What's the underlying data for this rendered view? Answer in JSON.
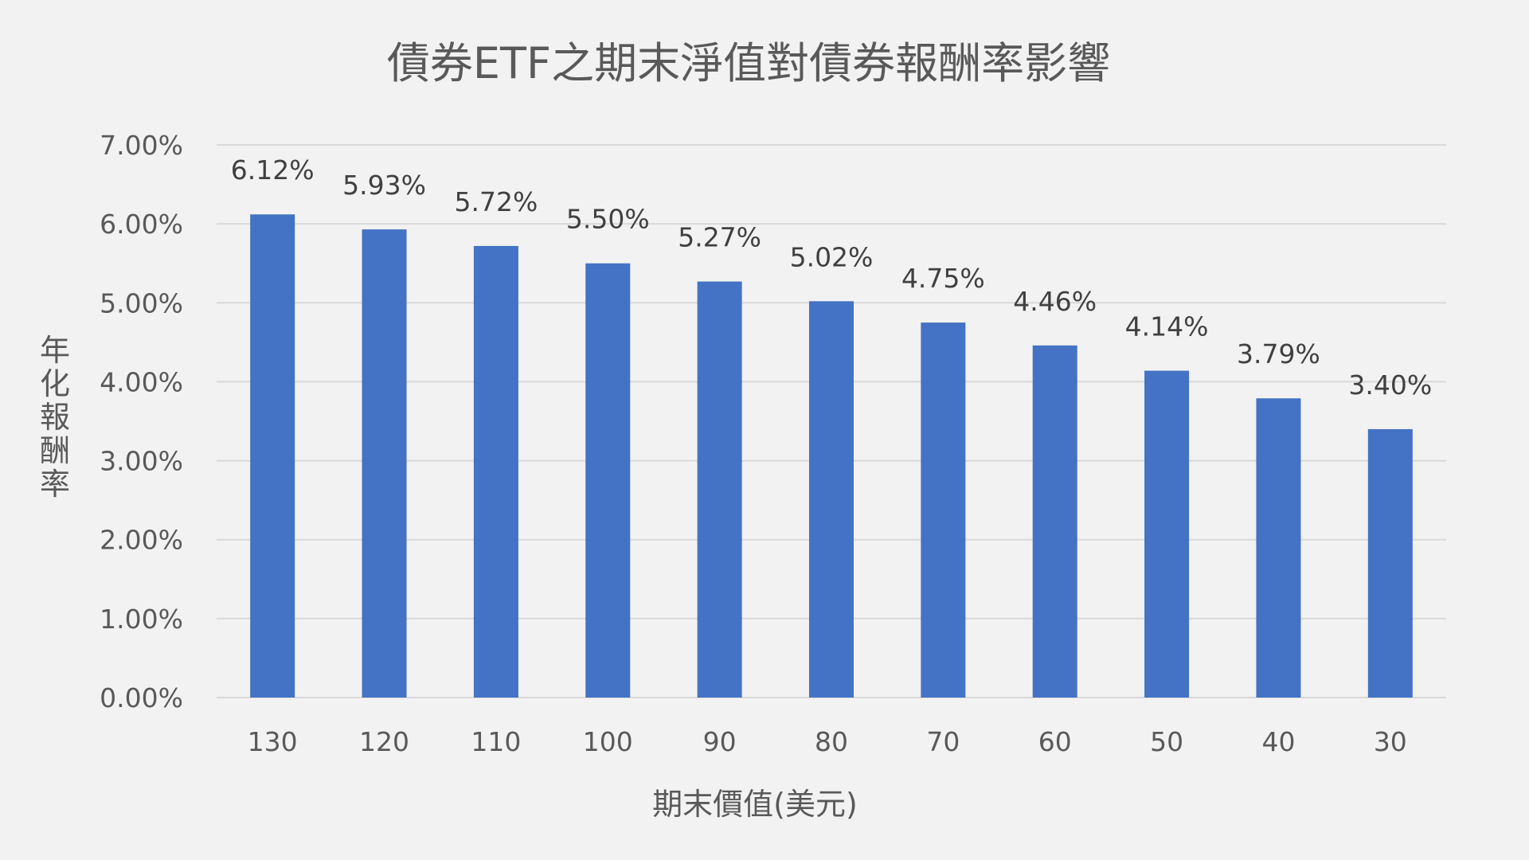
{
  "chart_data": {
    "type": "bar",
    "title": "債券ETF之期末淨值對債券報酬率影響",
    "xlabel": "期末價值(美元)",
    "ylabel": "年化報酬率",
    "categories": [
      "130",
      "120",
      "110",
      "100",
      "90",
      "80",
      "70",
      "60",
      "50",
      "40",
      "30"
    ],
    "values": [
      6.12,
      5.93,
      5.72,
      5.5,
      5.27,
      5.02,
      4.75,
      4.46,
      4.14,
      3.79,
      3.4
    ],
    "value_labels": [
      "6.12%",
      "5.93%",
      "5.72%",
      "5.50%",
      "5.27%",
      "5.02%",
      "4.75%",
      "4.46%",
      "4.14%",
      "3.79%",
      "3.40%"
    ],
    "ylim": [
      0,
      7
    ],
    "yticks": [
      0,
      1,
      2,
      3,
      4,
      5,
      6,
      7
    ],
    "ytick_labels": [
      "0.00%",
      "1.00%",
      "2.00%",
      "3.00%",
      "4.00%",
      "5.00%",
      "6.00%",
      "7.00%"
    ],
    "grid": true,
    "legend": "none",
    "colors": {
      "bar": "#4472c4",
      "background": "#f2f2f2",
      "grid": "#d9d9d9",
      "text": "#595959"
    }
  }
}
